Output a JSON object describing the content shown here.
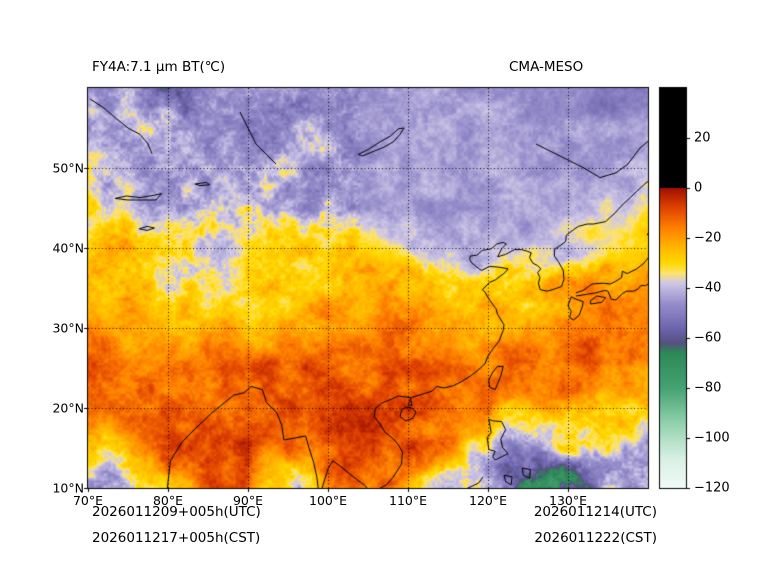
{
  "figure": {
    "title_left": "FY4A:7.1 μm BT(℃)",
    "title_right": "CMA-MESO",
    "annotations": {
      "bottom_left_line1": "2026011209+005h(UTC)",
      "bottom_left_line2": "2026011217+005h(CST)",
      "bottom_right_line1": "2026011214(UTC)",
      "bottom_right_line2": "2026011222(CST)"
    }
  },
  "chart_data": {
    "type": "heatmap",
    "title": "FY4A:7.1 μm BT(℃)",
    "model_label": "CMA-MESO",
    "unit": "℃",
    "x_axis": {
      "range": [
        70,
        140
      ],
      "ticks": [
        {
          "value": 70,
          "label": "70°E"
        },
        {
          "value": 80,
          "label": "80°E"
        },
        {
          "value": 90,
          "label": "90°E"
        },
        {
          "value": 100,
          "label": "100°E"
        },
        {
          "value": 110,
          "label": "110°E"
        },
        {
          "value": 120,
          "label": "120°E"
        },
        {
          "value": 130,
          "label": "130°E"
        }
      ]
    },
    "y_axis": {
      "range": [
        10,
        60
      ],
      "ticks": [
        {
          "value": 50,
          "label": "50°N"
        },
        {
          "value": 40,
          "label": "40°N"
        },
        {
          "value": 30,
          "label": "30°N"
        },
        {
          "value": 20,
          "label": "20°N"
        },
        {
          "value": 10,
          "label": "10°N"
        }
      ]
    },
    "colorbar": {
      "range": [
        -120,
        40
      ],
      "ticks": [
        {
          "value": 20,
          "label": "20"
        },
        {
          "value": 0,
          "label": "0"
        },
        {
          "value": -20,
          "label": "−20"
        },
        {
          "value": -40,
          "label": "−40"
        },
        {
          "value": -60,
          "label": "−60"
        },
        {
          "value": -80,
          "label": "−80"
        },
        {
          "value": -100,
          "label": "−100"
        },
        {
          "value": -120,
          "label": "−120"
        }
      ],
      "above_zero_color": "#000000",
      "stops": [
        [
          0,
          "#a01000"
        ],
        [
          -8,
          "#e04400"
        ],
        [
          -16,
          "#ff8000"
        ],
        [
          -24,
          "#ffb800"
        ],
        [
          -30,
          "#ffd800"
        ],
        [
          -34,
          "#ffe46a"
        ],
        [
          -38,
          "#cfc8e8"
        ],
        [
          -46,
          "#9890cc"
        ],
        [
          -56,
          "#6f66ae"
        ],
        [
          -62,
          "#55517e"
        ],
        [
          -66,
          "#2d8a58"
        ],
        [
          -80,
          "#46a372"
        ],
        [
          -95,
          "#97d4b2"
        ],
        [
          -108,
          "#d8f0e4"
        ],
        [
          -120,
          "#f0fbf7"
        ]
      ]
    },
    "grid_lons": [
      70,
      75,
      80,
      85,
      90,
      95,
      100,
      105,
      110,
      115,
      120,
      125,
      130,
      135,
      140
    ],
    "grid_lats": [
      60,
      55,
      50,
      45,
      40,
      35,
      30,
      25,
      20,
      15,
      10
    ],
    "bt_values": [
      [
        -44,
        -42,
        -60,
        -46,
        -46,
        -45,
        -44,
        -45,
        -44,
        -45,
        -44,
        -45,
        -46,
        -58,
        -46
      ],
      [
        -40,
        -38,
        -44,
        -48,
        -45,
        -44,
        -44,
        -45,
        -44,
        -44,
        -45,
        -44,
        -45,
        -46,
        -44
      ],
      [
        -36,
        -40,
        -44,
        -46,
        -42,
        -40,
        -44,
        -45,
        -44,
        -44,
        -43,
        -44,
        -44,
        -43,
        -42
      ],
      [
        -32,
        -36,
        -42,
        -38,
        -42,
        -44,
        -42,
        -44,
        -44,
        -44,
        -43,
        -44,
        -43,
        -40,
        -38
      ],
      [
        -26,
        -24,
        -30,
        -36,
        -34,
        -30,
        -28,
        -30,
        -38,
        -42,
        -44,
        -42,
        -38,
        -30,
        -26
      ],
      [
        -24,
        -26,
        -34,
        -36,
        -32,
        -26,
        -24,
        -22,
        -24,
        -26,
        -30,
        -28,
        -24,
        -20,
        -18
      ],
      [
        -18,
        -20,
        -24,
        -26,
        -22,
        -20,
        -18,
        -16,
        -18,
        -20,
        -22,
        -20,
        -16,
        -14,
        -16
      ],
      [
        -12,
        -14,
        -16,
        -14,
        -12,
        -10,
        -12,
        -14,
        -12,
        -14,
        -16,
        -14,
        -12,
        -12,
        -14
      ],
      [
        -14,
        -12,
        -10,
        -10,
        -12,
        -10,
        -8,
        -8,
        -10,
        -12,
        -16,
        -20,
        -22,
        -26,
        -30
      ],
      [
        -34,
        -24,
        -12,
        -8,
        -8,
        -14,
        -10,
        -8,
        -10,
        -16,
        -40,
        -42,
        -38,
        -36,
        -38
      ],
      [
        -50,
        -44,
        -22,
        -10,
        -12,
        -40,
        -16,
        -12,
        -18,
        -44,
        -48,
        -78,
        -68,
        -48,
        -44
      ]
    ]
  }
}
